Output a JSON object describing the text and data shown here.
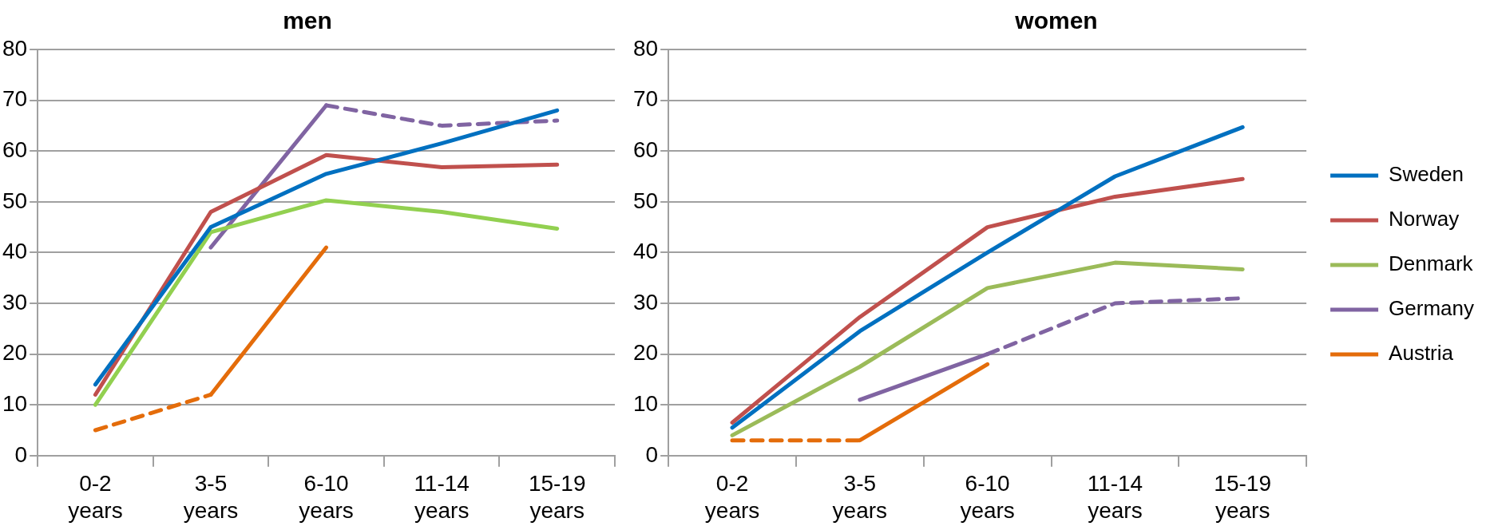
{
  "chart_data": [
    {
      "type": "line",
      "title": "men",
      "categories": [
        "0-2 years",
        "3-5 years",
        "6-10 years",
        "11-14 years",
        "15-19 years"
      ],
      "ylim": [
        0,
        80
      ],
      "yticks": [
        0,
        10,
        20,
        30,
        40,
        50,
        60,
        70,
        80
      ],
      "grid": "y",
      "legend": false,
      "line_style": "solid",
      "series": [
        {
          "color": "#0070c0",
          "values": [
            14,
            45,
            55.5,
            61.5,
            68
          ]
        },
        {
          "color": "#c0504d",
          "values": [
            12,
            48,
            59.2,
            56.8,
            57.3
          ]
        },
        {
          "color": "#92d050",
          "values": [
            10,
            44,
            50.3,
            48,
            44.7
          ]
        },
        {
          "color": "#8064a2",
          "values": [
            null,
            41,
            69,
            null,
            null
          ]
        },
        {
          "color": "#8064a2",
          "line_style": "dashed",
          "values": [
            null,
            null,
            69,
            65,
            66
          ]
        },
        {
          "color": "#e46c0a",
          "values": [
            null,
            12,
            41,
            null,
            null
          ]
        },
        {
          "color": "#e46c0a",
          "line_style": "dashed",
          "values": [
            5,
            12,
            null,
            null,
            null
          ]
        }
      ]
    },
    {
      "type": "line",
      "title": "women",
      "categories": [
        "0-2 years",
        "3-5 years",
        "6-10 years",
        "11-14 years",
        "15-19 years"
      ],
      "ylim": [
        0,
        80
      ],
      "yticks": [
        0,
        10,
        20,
        30,
        40,
        50,
        60,
        70,
        80
      ],
      "grid": "y",
      "legend": "right",
      "line_style": "solid",
      "series": [
        {
          "name": "Sweden",
          "color": "#0070c0",
          "values": [
            5.5,
            24.5,
            40,
            55,
            64.7
          ]
        },
        {
          "name": "Norway",
          "color": "#c0504d",
          "values": [
            6.5,
            27.3,
            45,
            51,
            54.5
          ]
        },
        {
          "name": "Denmark",
          "color": "#9bbb59",
          "values": [
            4,
            17.5,
            33,
            38,
            36.7
          ]
        },
        {
          "name": "Germany",
          "color": "#8064a2",
          "values": [
            null,
            11,
            20,
            null,
            null
          ]
        },
        {
          "color": "#8064a2",
          "line_style": "dashed",
          "values": [
            null,
            null,
            20,
            30,
            31
          ]
        },
        {
          "name": "Austria",
          "color": "#e46c0a",
          "values": [
            null,
            3,
            18,
            null,
            null
          ]
        },
        {
          "color": "#e46c0a",
          "line_style": "dashed",
          "values": [
            3,
            3,
            null,
            null,
            null
          ]
        }
      ]
    }
  ]
}
